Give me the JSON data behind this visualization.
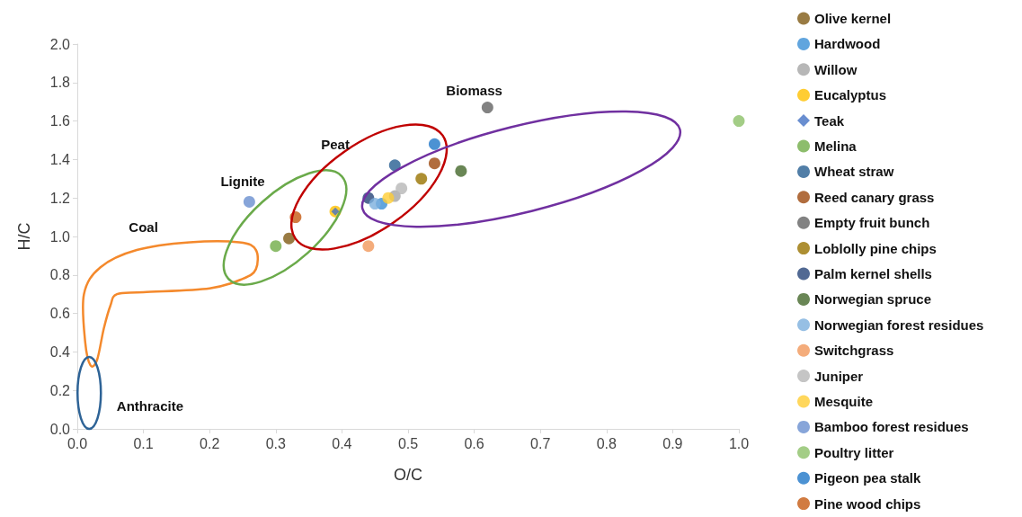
{
  "chart_data": {
    "type": "scatter",
    "xlabel": "O/C",
    "ylabel": "H/C",
    "xlim": [
      0,
      1
    ],
    "xticks": [
      {
        "value": 0,
        "label": "0.0"
      },
      0.1,
      0.2,
      0.3,
      0.4,
      0.5,
      0.6,
      0.7,
      0.8,
      0.9,
      {
        "value": 1,
        "label": "1.0"
      }
    ],
    "ylim": [
      0,
      2
    ],
    "yticks": [
      {
        "value": 0,
        "label": "0.0"
      },
      0.2,
      0.4,
      0.6,
      0.8,
      {
        "value": 1,
        "label": "1.0"
      },
      1.2,
      1.4,
      1.6,
      1.8,
      {
        "value": 2,
        "label": "2.0"
      }
    ],
    "grid": false,
    "legend": "right",
    "marker": "circle",
    "annotations": [
      "Coal",
      "Lignite",
      "Peat",
      "Biomass",
      "Anthracite"
    ],
    "series": [
      {
        "name": "Olive kernel",
        "color": "#7f5a14",
        "x": [
          0.32
        ],
        "values": [
          0.99
        ]
      },
      {
        "name": "Hardwood",
        "color": "#3a8fd6",
        "x": [
          0.46
        ],
        "values": [
          1.17
        ]
      },
      {
        "name": "Willow",
        "color": "#a5a5a5",
        "x": [
          0.48
        ],
        "values": [
          1.21
        ]
      },
      {
        "name": "Eucalyptus",
        "color": "#ffc000",
        "x": [
          0.39
        ],
        "values": [
          1.13
        ]
      },
      {
        "name": "Teak",
        "color": "#4472c4",
        "marker": "diamond",
        "x": [
          0.39
        ],
        "values": [
          1.13
        ]
      },
      {
        "name": "Melina",
        "color": "#70ad47",
        "x": [
          0.3
        ],
        "values": [
          0.95
        ]
      },
      {
        "name": "Wheat straw",
        "color": "#255e91",
        "x": [
          0.48
        ],
        "values": [
          1.37
        ]
      },
      {
        "name": "Reed canary grass",
        "color": "#9e480e",
        "x": [
          0.54
        ],
        "values": [
          1.38
        ]
      },
      {
        "name": "Empty fruit bunch",
        "color": "#636363",
        "x": [
          0.62
        ],
        "values": [
          1.67
        ]
      },
      {
        "name": "Loblolly pine chips",
        "color": "#997300",
        "x": [
          0.52
        ],
        "values": [
          1.3
        ]
      },
      {
        "name": "Palm kernel shells",
        "color": "#264478",
        "x": [
          0.44
        ],
        "values": [
          1.2
        ]
      },
      {
        "name": "Norwegian spruce",
        "color": "#43682b",
        "x": [
          0.58
        ],
        "values": [
          1.34
        ]
      },
      {
        "name": "Norwegian forest residues",
        "color": "#7cafdd",
        "x": [
          0.45
        ],
        "values": [
          1.17
        ]
      },
      {
        "name": "Switchgrass",
        "color": "#f1975a",
        "x": [
          0.44
        ],
        "values": [
          0.95
        ]
      },
      {
        "name": "Juniper",
        "color": "#b7b7b7",
        "x": [
          0.49
        ],
        "values": [
          1.25
        ]
      },
      {
        "name": "Mesquite",
        "color": "#ffcd33",
        "x": [
          0.47
        ],
        "values": [
          1.2
        ]
      },
      {
        "name": "Bamboo forest residues",
        "color": "#698ed0",
        "x": [
          0.26
        ],
        "values": [
          1.18
        ]
      },
      {
        "name": "Poultry litter",
        "color": "#8cc168",
        "x": [
          1.0
        ],
        "values": [
          1.6
        ]
      },
      {
        "name": "Pigeon pea stalk",
        "color": "#1f77c8",
        "x": [
          0.54
        ],
        "values": [
          1.48
        ]
      },
      {
        "name": "Pine wood chips",
        "color": "#c55a11",
        "x": [
          0.33
        ],
        "values": [
          1.1
        ]
      }
    ]
  }
}
